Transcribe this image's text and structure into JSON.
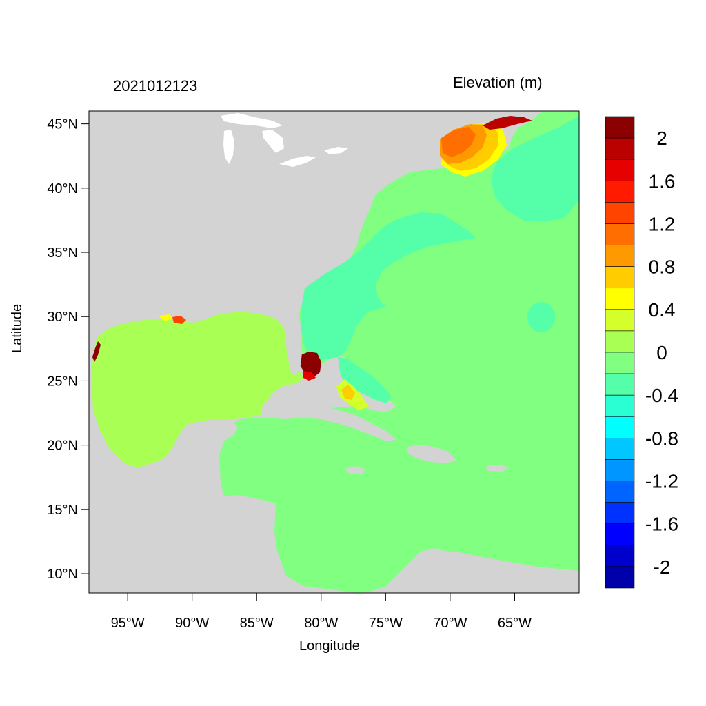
{
  "map": {
    "timestamp": "2021012123",
    "variable_title": "Elevation (m)",
    "xlabel": "Longitude",
    "ylabel": "Latitude",
    "lon_range": [
      -98,
      -60
    ],
    "lat_range": [
      8.5,
      46
    ],
    "lat_ticks": [
      {
        "value": 45,
        "label": "45°N"
      },
      {
        "value": 40,
        "label": "40°N"
      },
      {
        "value": 35,
        "label": "35°N"
      },
      {
        "value": 30,
        "label": "30°N"
      },
      {
        "value": 25,
        "label": "25°N"
      },
      {
        "value": 20,
        "label": "20°N"
      },
      {
        "value": 15,
        "label": "15°N"
      },
      {
        "value": 10,
        "label": "10°N"
      }
    ],
    "lon_ticks": [
      {
        "value": -95,
        "label": "95°W"
      },
      {
        "value": -90,
        "label": "90°W"
      },
      {
        "value": -85,
        "label": "85°W"
      },
      {
        "value": -80,
        "label": "80°W"
      },
      {
        "value": -75,
        "label": "75°W"
      },
      {
        "value": -70,
        "label": "70°W"
      },
      {
        "value": -65,
        "label": "65°W"
      }
    ],
    "colors": {
      "land": "#d3d3d3",
      "ocean_base": "#80ff80",
      "gulf": "#aaff55",
      "shelf": "#55ffaa"
    }
  },
  "colorbar": {
    "colors": [
      "#8b0000",
      "#bb0000",
      "#e60000",
      "#ff1a00",
      "#ff4400",
      "#ff6e00",
      "#ff9900",
      "#ffcc00",
      "#ffff00",
      "#d4ff2a",
      "#aaff55",
      "#80ff80",
      "#55ffaa",
      "#2affd4",
      "#00ffff",
      "#00c8ff",
      "#0096ff",
      "#0064ff",
      "#0032ff",
      "#0000ff",
      "#0000cc",
      "#0000aa"
    ],
    "labels": [
      {
        "band": 1,
        "text": "2"
      },
      {
        "band": 3,
        "text": "1.6"
      },
      {
        "band": 5,
        "text": "1.2"
      },
      {
        "band": 7,
        "text": "0.8"
      },
      {
        "band": 9,
        "text": "0.4"
      },
      {
        "band": 11,
        "text": "0"
      },
      {
        "band": 13,
        "text": "-0.4"
      },
      {
        "band": 15,
        "text": "-0.8"
      },
      {
        "band": 17,
        "text": "-1.2"
      },
      {
        "band": 19,
        "text": "-1.6"
      },
      {
        "band": 21,
        "text": "-2"
      }
    ]
  }
}
